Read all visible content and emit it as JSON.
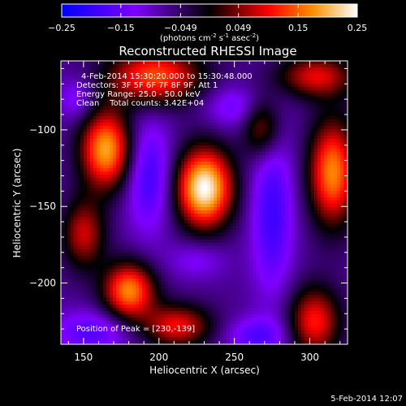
{
  "chart_data": {
    "type": "heatmap",
    "title": "Reconstructed RHESSI Image",
    "xlabel": "Heliocentric X (arcsec)",
    "ylabel": "Heliocentric Y (arcsec)",
    "xlim": [
      135,
      325
    ],
    "ylim": [
      -240,
      -55
    ],
    "xticks": [
      150,
      200,
      250,
      300
    ],
    "yticks": [
      -100,
      -150,
      -200
    ],
    "colorbar": {
      "ticks": [
        -0.25,
        -0.15,
        -0.049,
        0.049,
        0.15,
        0.25
      ],
      "range": [
        -0.25,
        0.25
      ],
      "unit_label": "(photons cm",
      "unit_sup1": "-2",
      "unit_mid": " s",
      "unit_sup2": "-1",
      "unit_end": " asec",
      "unit_sup3": "-2",
      "unit_close": ")"
    },
    "annotations": [
      "4-Feb-2014 15:30:20.000 to 15:30:48.000",
      "Detectors: 3F 5F 6F 7F 8F 9F, Att 1",
      "Energy Range: 25.0 - 50.0 keV",
      "Clean    Total counts: 3.42E+04"
    ],
    "peak_text": "Position of Peak = [230,-139]",
    "peak": [
      230,
      -139
    ],
    "sources": [
      {
        "x": 230,
        "y": -138,
        "amp": 0.25,
        "sx": 13,
        "sy": 18
      },
      {
        "x": 165,
        "y": -113,
        "amp": 0.19,
        "sx": 12,
        "sy": 18
      },
      {
        "x": 180,
        "y": -205,
        "amp": 0.17,
        "sx": 12,
        "sy": 13
      },
      {
        "x": 315,
        "y": -128,
        "amp": 0.17,
        "sx": 11,
        "sy": 24
      },
      {
        "x": 197,
        "y": -65,
        "amp": 0.14,
        "sx": 22,
        "sy": 13
      },
      {
        "x": 304,
        "y": -65,
        "amp": 0.09,
        "sx": 18,
        "sy": 10
      },
      {
        "x": 303,
        "y": -225,
        "amp": 0.11,
        "sx": 12,
        "sy": 16
      },
      {
        "x": 150,
        "y": -168,
        "amp": 0.08,
        "sx": 10,
        "sy": 16
      },
      {
        "x": 212,
        "y": -228,
        "amp": 0.1,
        "sx": 16,
        "sy": 10
      },
      {
        "x": 268,
        "y": -98,
        "amp": 0.07,
        "sx": 9,
        "sy": 14
      }
    ],
    "troughs": [
      {
        "x": 193,
        "y": -130,
        "amp": -0.12,
        "sx": 11,
        "sy": 26
      },
      {
        "x": 275,
        "y": -155,
        "amp": -0.12,
        "sx": 10,
        "sy": 38
      },
      {
        "x": 155,
        "y": -232,
        "amp": -0.1,
        "sx": 18,
        "sy": 10
      },
      {
        "x": 250,
        "y": -85,
        "amp": -0.08,
        "sx": 14,
        "sy": 10
      },
      {
        "x": 265,
        "y": -235,
        "amp": -0.1,
        "sx": 14,
        "sy": 9
      },
      {
        "x": 145,
        "y": -80,
        "amp": -0.07,
        "sx": 9,
        "sy": 10
      },
      {
        "x": 225,
        "y": -185,
        "amp": -0.06,
        "sx": 14,
        "sy": 9
      }
    ]
  },
  "footer": {
    "timestamp": "5-Feb-2014 12:07"
  }
}
